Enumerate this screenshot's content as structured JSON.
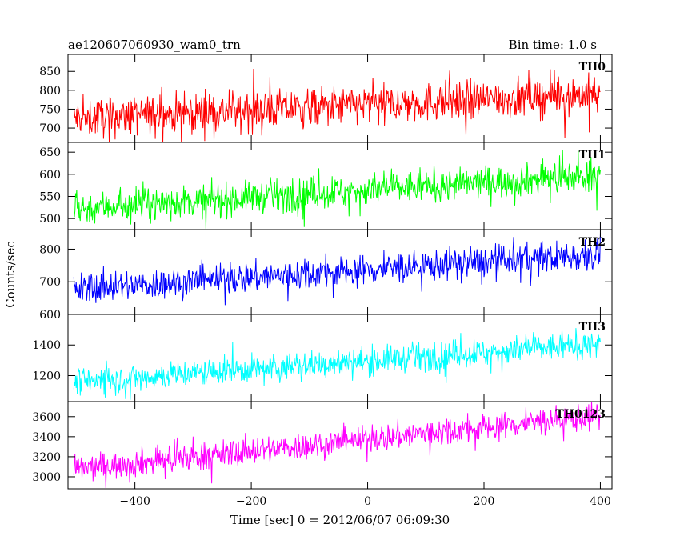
{
  "header": {
    "title": "ae120607060930_wam0_trn",
    "bin_time": "Bin time: 1.0 s"
  },
  "chart_data": {
    "type": "line",
    "xlabel": "Time [sec] 0 = 2012/06/07 06:09:30",
    "ylabel": "Counts/sec",
    "xlim": [
      -515,
      420
    ],
    "x_ticks": [
      -400,
      -200,
      0,
      200,
      400
    ],
    "x_tick_labels": [
      "−400",
      "−200",
      "0",
      "200",
      "400"
    ],
    "x_range": [
      -505,
      400
    ],
    "panels": [
      {
        "name": "TH0",
        "color": "#ff0000",
        "ylim": [
          662,
          895
        ],
        "yticks": [
          700,
          750,
          800,
          850
        ],
        "ytick_labels": [
          "700",
          "750",
          "800",
          "850"
        ],
        "start": 725,
        "end": 790,
        "noise": 26,
        "spike": 55
      },
      {
        "name": "TH1",
        "color": "#00ff00",
        "ylim": [
          475,
          672
        ],
        "yticks": [
          500,
          550,
          600,
          650
        ],
        "ytick_labels": [
          "500",
          "550",
          "600",
          "650"
        ],
        "start": 522,
        "end": 598,
        "noise": 18,
        "spike": 45
      },
      {
        "name": "TH2",
        "color": "#0000ff",
        "ylim": [
          600,
          860
        ],
        "yticks": [
          600,
          700,
          800
        ],
        "ytick_labels": [
          "600",
          "700",
          "800"
        ],
        "start": 677,
        "end": 785,
        "noise": 24,
        "spike": 55
      },
      {
        "name": "TH3",
        "color": "#00ffff",
        "ylim": [
          1030,
          1600
        ],
        "yticks": [
          1200,
          1400
        ],
        "ytick_labels": [
          "1200",
          "1400"
        ],
        "start": 1160,
        "end": 1405,
        "noise": 45,
        "spike": 110
      },
      {
        "name": "TH0123",
        "color": "#ff00ff",
        "ylim": [
          2880,
          3750
        ],
        "yticks": [
          3000,
          3200,
          3400,
          3600
        ],
        "ytick_labels": [
          "3000",
          "3200",
          "3400",
          "3600"
        ],
        "start": 3075,
        "end": 3610,
        "noise": 70,
        "spike": 150
      }
    ]
  }
}
